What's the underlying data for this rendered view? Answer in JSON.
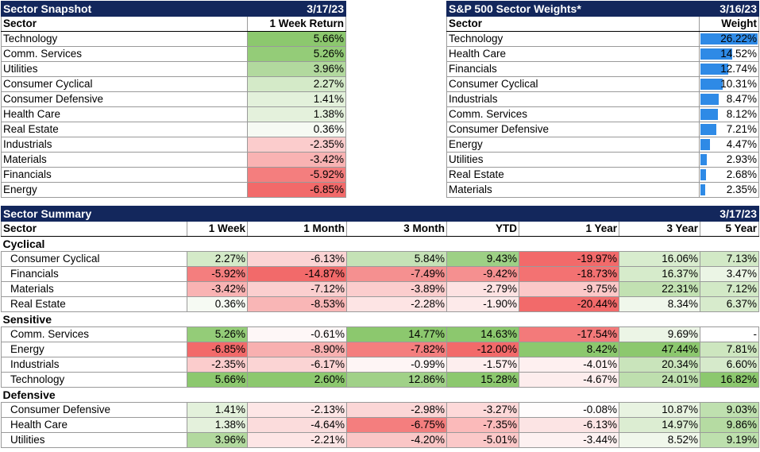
{
  "snapshot": {
    "title": "Sector Snapshot",
    "date": "3/17/23",
    "col_sector": "Sector",
    "col_return": "1 Week Return",
    "rows": [
      {
        "sector": "Technology",
        "ret": "5.66%",
        "color": "#8cc86e"
      },
      {
        "sector": "Comm. Services",
        "ret": "5.26%",
        "color": "#94cc78"
      },
      {
        "sector": "Utilities",
        "ret": "3.96%",
        "color": "#b2d99e"
      },
      {
        "sector": "Consumer Cyclical",
        "ret": "2.27%",
        "color": "#d4eac8"
      },
      {
        "sector": "Consumer Defensive",
        "ret": "1.41%",
        "color": "#e3f1db"
      },
      {
        "sector": "Health Care",
        "ret": "1.38%",
        "color": "#e4f1dc"
      },
      {
        "sector": "Real Estate",
        "ret": "0.36%",
        "color": "#f6faf3"
      },
      {
        "sector": "Industrials",
        "ret": "-2.35%",
        "color": "#fbcccc"
      },
      {
        "sector": "Materials",
        "ret": "-3.42%",
        "color": "#f9b3b3"
      },
      {
        "sector": "Financials",
        "ret": "-5.92%",
        "color": "#f47e7e"
      },
      {
        "sector": "Energy",
        "ret": "-6.85%",
        "color": "#f26a6a"
      }
    ]
  },
  "weights": {
    "title": "S&P 500 Sector Weights*",
    "date": "3/16/23",
    "col_sector": "Sector",
    "col_weight": "Weight",
    "bar_color": "#2e8ae6",
    "rows": [
      {
        "sector": "Technology",
        "weight": "26.22%",
        "value": 26.22
      },
      {
        "sector": "Health Care",
        "weight": "14.52%",
        "value": 14.52
      },
      {
        "sector": "Financials",
        "weight": "12.74%",
        "value": 12.74
      },
      {
        "sector": "Consumer Cyclical",
        "weight": "10.31%",
        "value": 10.31
      },
      {
        "sector": "Industrials",
        "weight": "8.47%",
        "value": 8.47
      },
      {
        "sector": "Comm. Services",
        "weight": "8.12%",
        "value": 8.12
      },
      {
        "sector": "Consumer Defensive",
        "weight": "7.21%",
        "value": 7.21
      },
      {
        "sector": "Energy",
        "weight": "4.47%",
        "value": 4.47
      },
      {
        "sector": "Utilities",
        "weight": "2.93%",
        "value": 2.93
      },
      {
        "sector": "Real Estate",
        "weight": "2.68%",
        "value": 2.68
      },
      {
        "sector": "Materials",
        "weight": "2.35%",
        "value": 2.35
      }
    ]
  },
  "summary": {
    "title": "Sector Summary",
    "date": "3/17/23",
    "columns": [
      "Sector",
      "1 Week",
      "1 Month",
      "3 Month",
      "YTD",
      "1 Year",
      "3 Year",
      "5 Year"
    ],
    "groups": [
      {
        "label": "Cyclical",
        "rows": [
          {
            "sector": "Consumer Cyclical",
            "cells": [
              {
                "v": "2.27%",
                "c": "#d4eac8"
              },
              {
                "v": "-6.13%",
                "c": "#fbd4d4"
              },
              {
                "v": "5.84%",
                "c": "#c5e2b6"
              },
              {
                "v": "9.43%",
                "c": "#9dd085"
              },
              {
                "v": "-19.97%",
                "c": "#f26a6a"
              },
              {
                "v": "16.06%",
                "c": "#d8ecce"
              },
              {
                "v": "7.13%",
                "c": "#d2e9c6"
              }
            ]
          },
          {
            "sector": "Financials",
            "cells": [
              {
                "v": "-5.92%",
                "c": "#f47e7e"
              },
              {
                "v": "-14.87%",
                "c": "#f26a6a"
              },
              {
                "v": "-7.49%",
                "c": "#f59090"
              },
              {
                "v": "-9.42%",
                "c": "#f59090"
              },
              {
                "v": "-18.73%",
                "c": "#f37272"
              },
              {
                "v": "16.37%",
                "c": "#d6ebcb"
              },
              {
                "v": "3.47%",
                "c": "#ebf5e5"
              }
            ]
          },
          {
            "sector": "Materials",
            "cells": [
              {
                "v": "-3.42%",
                "c": "#f9b3b3"
              },
              {
                "v": "-7.12%",
                "c": "#fbcfcf"
              },
              {
                "v": "-3.89%",
                "c": "#fbcdcd"
              },
              {
                "v": "-2.79%",
                "c": "#fde2e2"
              },
              {
                "v": "-9.75%",
                "c": "#fbc8c8"
              },
              {
                "v": "22.31%",
                "c": "#c2e1b2"
              },
              {
                "v": "7.12%",
                "c": "#d2e9c6"
              }
            ]
          },
          {
            "sector": "Real Estate",
            "cells": [
              {
                "v": "0.36%",
                "c": "#f6faf3"
              },
              {
                "v": "-8.53%",
                "c": "#f9b6b6"
              },
              {
                "v": "-2.28%",
                "c": "#fde4e4"
              },
              {
                "v": "-1.90%",
                "c": "#fdeaea"
              },
              {
                "v": "-20.44%",
                "c": "#f26a6a"
              },
              {
                "v": "8.34%",
                "c": "#f0f7eb"
              },
              {
                "v": "6.37%",
                "c": "#d7ebcc"
              }
            ]
          }
        ]
      },
      {
        "label": "Sensitive",
        "rows": [
          {
            "sector": "Comm. Services",
            "cells": [
              {
                "v": "5.26%",
                "c": "#94cc78"
              },
              {
                "v": "-0.61%",
                "c": "#fef7f7"
              },
              {
                "v": "14.77%",
                "c": "#8cc86e"
              },
              {
                "v": "14.63%",
                "c": "#8cc86e"
              },
              {
                "v": "-17.54%",
                "c": "#f37a7a"
              },
              {
                "v": "9.69%",
                "c": "#ecf5e6"
              },
              {
                "v": "-",
                "c": "#ffffff"
              }
            ]
          },
          {
            "sector": "Energy",
            "cells": [
              {
                "v": "-6.85%",
                "c": "#f26a6a"
              },
              {
                "v": "-8.90%",
                "c": "#f8b0b0"
              },
              {
                "v": "-7.82%",
                "c": "#f47e7e"
              },
              {
                "v": "-12.00%",
                "c": "#f26a6a"
              },
              {
                "v": "8.42%",
                "c": "#8cc86e"
              },
              {
                "v": "47.44%",
                "c": "#8cc86e"
              },
              {
                "v": "7.81%",
                "c": "#cde6bf"
              }
            ]
          },
          {
            "sector": "Industrials",
            "cells": [
              {
                "v": "-2.35%",
                "c": "#fbcccc"
              },
              {
                "v": "-6.17%",
                "c": "#fbd4d4"
              },
              {
                "v": "-0.99%",
                "c": "#fef5f5"
              },
              {
                "v": "-1.57%",
                "c": "#fdeeee"
              },
              {
                "v": "-4.01%",
                "c": "#fef0f0"
              },
              {
                "v": "20.34%",
                "c": "#c9e4bb"
              },
              {
                "v": "6.60%",
                "c": "#d6eacb"
              }
            ]
          },
          {
            "sector": "Technology",
            "cells": [
              {
                "v": "5.66%",
                "c": "#8cc86e"
              },
              {
                "v": "2.60%",
                "c": "#8cc86e"
              },
              {
                "v": "12.86%",
                "c": "#a0d188"
              },
              {
                "v": "15.28%",
                "c": "#8cc86e"
              },
              {
                "v": "-4.67%",
                "c": "#fdeded"
              },
              {
                "v": "24.01%",
                "c": "#bedfae"
              },
              {
                "v": "16.82%",
                "c": "#8cc86e"
              }
            ]
          }
        ]
      },
      {
        "label": "Defensive",
        "rows": [
          {
            "sector": "Consumer Defensive",
            "cells": [
              {
                "v": "1.41%",
                "c": "#e3f1db"
              },
              {
                "v": "-2.13%",
                "c": "#fde6e6"
              },
              {
                "v": "-2.98%",
                "c": "#fbd6d6"
              },
              {
                "v": "-3.27%",
                "c": "#fdd9d9"
              },
              {
                "v": "-0.08%",
                "c": "#fffdfd"
              },
              {
                "v": "10.87%",
                "c": "#e8f3e1"
              },
              {
                "v": "9.03%",
                "c": "#bfe0af"
              }
            ]
          },
          {
            "sector": "Health Care",
            "cells": [
              {
                "v": "1.38%",
                "c": "#e4f1dc"
              },
              {
                "v": "-4.64%",
                "c": "#fbdcdc"
              },
              {
                "v": "-6.75%",
                "c": "#f47e7e"
              },
              {
                "v": "-7.35%",
                "c": "#fbbaba"
              },
              {
                "v": "-6.13%",
                "c": "#fce4e4"
              },
              {
                "v": "14.97%",
                "c": "#dcedd2"
              },
              {
                "v": "9.86%",
                "c": "#b5dba2"
              }
            ]
          },
          {
            "sector": "Utilities",
            "cells": [
              {
                "v": "3.96%",
                "c": "#b2d99e"
              },
              {
                "v": "-2.21%",
                "c": "#fde5e5"
              },
              {
                "v": "-4.20%",
                "c": "#fac6c6"
              },
              {
                "v": "-5.01%",
                "c": "#fbc8c8"
              },
              {
                "v": "-3.44%",
                "c": "#fdf1f1"
              },
              {
                "v": "8.52%",
                "c": "#f0f7eb"
              },
              {
                "v": "9.19%",
                "c": "#bde0ad"
              }
            ]
          }
        ]
      }
    ]
  }
}
